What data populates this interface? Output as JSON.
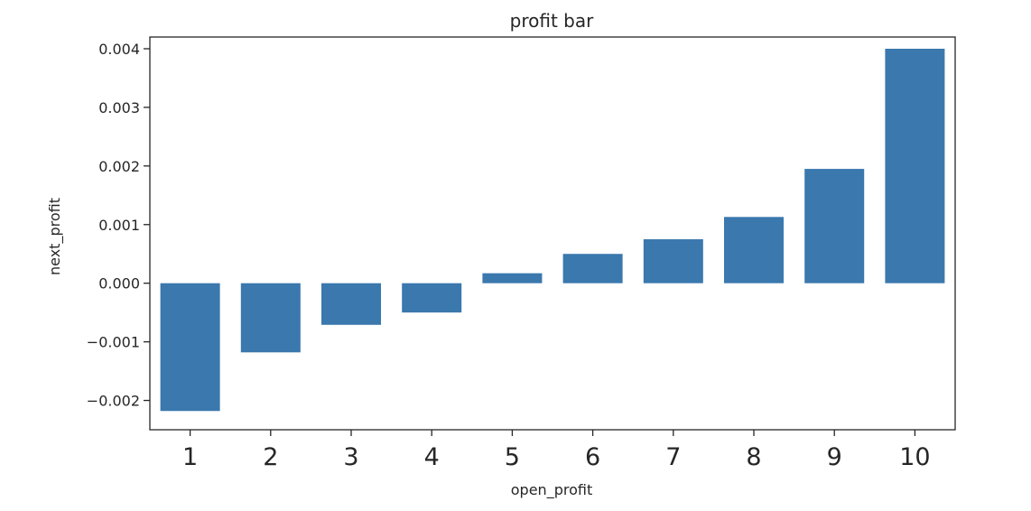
{
  "chart_data": {
    "type": "bar",
    "title": "profit bar",
    "xlabel": "open_profit",
    "ylabel": "next_profit",
    "categories": [
      "1",
      "2",
      "3",
      "4",
      "5",
      "6",
      "7",
      "8",
      "9",
      "10"
    ],
    "values": [
      -0.00218,
      -0.00118,
      -0.00071,
      -0.0005,
      0.00017,
      0.0005,
      0.00075,
      0.00113,
      0.00195,
      0.004
    ],
    "ylim": [
      -0.0025,
      0.0042
    ],
    "yticks": [
      -0.002,
      -0.001,
      0.0,
      0.001,
      0.002,
      0.003,
      0.004
    ],
    "ytick_labels": [
      "−0.002",
      "−0.001",
      "0.000",
      "0.001",
      "0.002",
      "0.003",
      "0.004"
    ],
    "grid": false,
    "bar_color": "#3a78ae"
  }
}
